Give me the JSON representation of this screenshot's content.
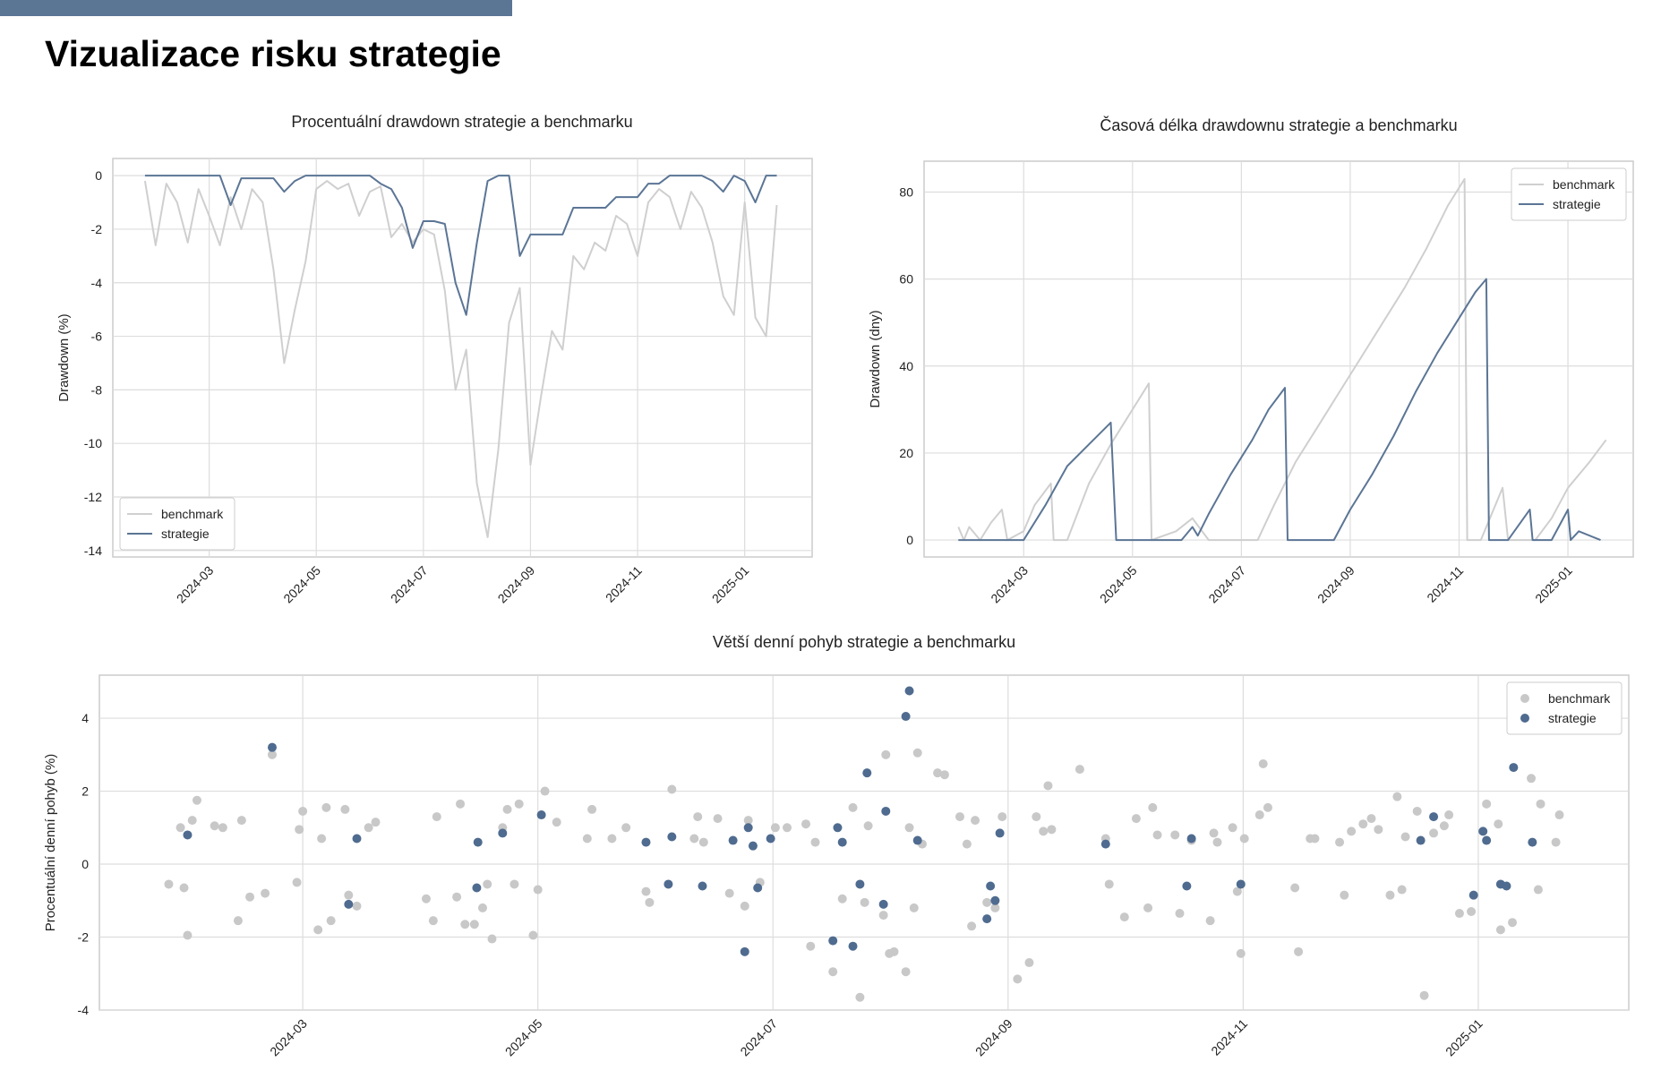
{
  "header": {
    "title": "Vizualizace risku strategie"
  },
  "chart_data": [
    {
      "type": "line",
      "title": "Procentuální drawdown strategie a benchmarku",
      "y_label": "Drawdown (%)",
      "legend": "lower left",
      "grid": true,
      "xlim": [
        1.2,
        14.26
      ],
      "xticks": [
        {
          "value": 3,
          "label": "2024-03"
        },
        {
          "value": 5,
          "label": "2024-05"
        },
        {
          "value": 7,
          "label": "2024-07"
        },
        {
          "value": 9,
          "label": "2024-09"
        },
        {
          "value": 11,
          "label": "2024-11"
        },
        {
          "value": 13,
          "label": "2025-01"
        }
      ],
      "ylim": [
        -14.24,
        0.64
      ],
      "yticks": [
        -14,
        -12,
        -10,
        -8,
        -6,
        -4,
        -2,
        0
      ],
      "x": [
        1.8,
        2.0,
        2.2,
        2.4,
        2.6,
        2.8,
        3.0,
        3.2,
        3.4,
        3.6,
        3.8,
        4.0,
        4.2,
        4.4,
        4.6,
        4.8,
        5.0,
        5.2,
        5.4,
        5.6,
        5.8,
        6.0,
        6.2,
        6.4,
        6.6,
        6.8,
        7.0,
        7.2,
        7.4,
        7.6,
        7.8,
        8.0,
        8.2,
        8.4,
        8.6,
        8.8,
        9.0,
        9.2,
        9.4,
        9.6,
        9.8,
        10.0,
        10.2,
        10.4,
        10.6,
        10.8,
        11.0,
        11.2,
        11.4,
        11.6,
        11.8,
        12.0,
        12.2,
        12.4,
        12.6,
        12.8,
        13.0,
        13.2,
        13.4,
        13.6
      ],
      "series": [
        {
          "name": "benchmark",
          "color": "#cfcfcf",
          "values": [
            -0.2,
            -2.6,
            -0.3,
            -1.0,
            -2.5,
            -0.5,
            -1.5,
            -2.6,
            -0.8,
            -2.0,
            -0.5,
            -1.0,
            -3.5,
            -7.0,
            -5.0,
            -3.2,
            -0.5,
            -0.2,
            -0.5,
            -0.3,
            -1.5,
            -0.6,
            -0.4,
            -2.3,
            -1.8,
            -2.5,
            -2.0,
            -2.2,
            -4.3,
            -8.0,
            -6.5,
            -11.5,
            -13.5,
            -10.2,
            -5.5,
            -4.2,
            -10.8,
            -8.2,
            -5.8,
            -6.5,
            -3.0,
            -3.5,
            -2.5,
            -2.8,
            -1.5,
            -1.8,
            -3.0,
            -1.0,
            -0.5,
            -0.8,
            -2.0,
            -0.6,
            -1.2,
            -2.5,
            -4.5,
            -5.2,
            -1.0,
            -5.3,
            -6.0,
            -1.1
          ]
        },
        {
          "name": "strategie",
          "color": "#5b7595",
          "values": [
            0,
            0,
            0,
            0,
            0,
            0,
            0,
            0,
            -1.1,
            -0.1,
            -0.1,
            -0.1,
            -0.1,
            -0.6,
            -0.2,
            0,
            0,
            0,
            0,
            0,
            0,
            0,
            -0.3,
            -0.5,
            -1.2,
            -2.7,
            -1.7,
            -1.7,
            -1.8,
            -4.0,
            -5.2,
            -2.5,
            -0.2,
            0,
            0,
            -3.0,
            -2.2,
            -2.2,
            -2.2,
            -2.2,
            -1.2,
            -1.2,
            -1.2,
            -1.2,
            -0.8,
            -0.8,
            -0.8,
            -0.3,
            -0.3,
            0,
            0,
            0,
            0,
            -0.2,
            -0.6,
            0,
            -0.2,
            -1.0,
            0,
            0
          ]
        }
      ]
    },
    {
      "type": "line",
      "title": "Časová délka drawdownu strategie a benchmarku",
      "y_label": "Drawdown (dny)",
      "legend": "upper right",
      "grid": true,
      "xlim": [
        1.17,
        14.2
      ],
      "xticks": [
        {
          "value": 3,
          "label": "2024-03"
        },
        {
          "value": 5,
          "label": "2024-05"
        },
        {
          "value": 7,
          "label": "2024-07"
        },
        {
          "value": 9,
          "label": "2024-09"
        },
        {
          "value": 11,
          "label": "2024-11"
        },
        {
          "value": 13,
          "label": "2025-01"
        }
      ],
      "ylim": [
        -3.9,
        87.1
      ],
      "yticks": [
        0,
        20,
        40,
        60,
        80
      ],
      "series": [
        {
          "name": "benchmark",
          "color": "#cfcfcf",
          "x": [
            1.8,
            1.9,
            2.0,
            2.2,
            2.4,
            2.6,
            2.7,
            3.0,
            3.2,
            3.5,
            3.55,
            3.8,
            4.2,
            4.6,
            5.0,
            5.3,
            5.35,
            5.8,
            6.1,
            6.4,
            7.3,
            7.6,
            8.0,
            8.4,
            8.8,
            9.2,
            9.6,
            10.0,
            10.4,
            10.8,
            11.1,
            11.15,
            11.4,
            11.8,
            11.9,
            12.4,
            12.7,
            13.0,
            13.4,
            13.7
          ],
          "values": [
            3,
            0,
            3,
            0,
            4,
            7,
            0,
            2,
            8,
            13,
            0,
            0,
            13,
            22,
            30,
            36,
            0,
            2,
            5,
            0,
            0,
            8,
            18,
            26,
            34,
            42,
            50,
            58,
            67,
            77,
            83,
            0,
            0,
            12,
            0,
            0,
            5,
            12,
            18,
            23
          ]
        },
        {
          "name": "strategie",
          "color": "#5b7595",
          "x": [
            1.8,
            2.4,
            3.0,
            3.4,
            3.8,
            4.2,
            4.6,
            4.7,
            5.3,
            5.9,
            6.1,
            6.2,
            6.4,
            6.8,
            7.2,
            7.5,
            7.8,
            7.85,
            8.3,
            8.7,
            9.0,
            9.4,
            9.8,
            10.2,
            10.6,
            11.0,
            11.3,
            11.5,
            11.55,
            11.9,
            12.3,
            12.35,
            12.7,
            13.0,
            13.05,
            13.2,
            13.6
          ],
          "values": [
            0,
            0,
            0,
            8,
            17,
            22,
            27,
            0,
            0,
            0,
            3,
            1,
            6,
            15,
            23,
            30,
            35,
            0,
            0,
            0,
            7,
            15,
            24,
            34,
            43,
            51,
            57,
            60,
            0,
            0,
            7,
            0,
            0,
            7,
            0,
            2,
            0
          ]
        }
      ]
    },
    {
      "type": "scatter",
      "title": "Větší denní pohyb strategie a benchmarku",
      "y_label": "Procentuální denní pohyb (%)",
      "legend": "upper right",
      "grid": true,
      "xlim": [
        1.27,
        14.28
      ],
      "xticks": [
        {
          "value": 3,
          "label": "2024-03"
        },
        {
          "value": 5,
          "label": "2024-05"
        },
        {
          "value": 7,
          "label": "2024-07"
        },
        {
          "value": 9,
          "label": "2024-09"
        },
        {
          "value": 11,
          "label": "2024-11"
        },
        {
          "value": 13,
          "label": "2025-01"
        }
      ],
      "ylim": [
        -4.0,
        5.18
      ],
      "yticks": [
        -4,
        -2,
        0,
        2,
        4
      ],
      "series": [
        {
          "name": "benchmark",
          "color": "#c8c8c8",
          "x": [
            1.86,
            1.96,
            1.99,
            2.02,
            2.06,
            2.1,
            2.25,
            2.32,
            2.45,
            2.48,
            2.55,
            2.68,
            2.74,
            2.95,
            2.97,
            3.0,
            3.13,
            3.16,
            3.2,
            3.24,
            3.36,
            3.39,
            3.46,
            3.56,
            3.62,
            4.05,
            4.11,
            4.14,
            4.31,
            4.34,
            4.38,
            4.46,
            4.53,
            4.57,
            4.61,
            4.7,
            4.74,
            4.8,
            4.84,
            4.96,
            5.0,
            5.06,
            5.16,
            5.42,
            5.46,
            5.63,
            5.75,
            5.92,
            5.95,
            6.14,
            6.33,
            6.36,
            6.41,
            6.53,
            6.63,
            6.76,
            6.79,
            6.89,
            7.02,
            7.12,
            7.28,
            7.32,
            7.36,
            7.51,
            7.59,
            7.68,
            7.74,
            7.78,
            7.81,
            7.94,
            7.96,
            7.99,
            8.03,
            8.13,
            8.16,
            8.2,
            8.23,
            8.27,
            8.4,
            8.46,
            8.59,
            8.65,
            8.69,
            8.72,
            8.82,
            8.89,
            8.95,
            9.08,
            9.18,
            9.24,
            9.3,
            9.34,
            9.37,
            9.61,
            9.83,
            9.86,
            9.99,
            10.09,
            10.19,
            10.23,
            10.27,
            10.42,
            10.46,
            10.56,
            10.72,
            10.75,
            10.78,
            10.91,
            10.95,
            10.98,
            11.01,
            11.14,
            11.17,
            11.21,
            11.44,
            11.47,
            11.57,
            11.61,
            11.82,
            11.86,
            11.92,
            12.02,
            12.09,
            12.15,
            12.25,
            12.31,
            12.35,
            12.38,
            12.48,
            12.54,
            12.62,
            12.71,
            12.75,
            12.84,
            12.94,
            13.07,
            13.17,
            13.19,
            13.29,
            13.45,
            13.51,
            13.53,
            13.66,
            13.69
          ],
          "values": [
            -0.55,
            1.0,
            -0.65,
            -1.95,
            1.2,
            1.75,
            1.05,
            1.0,
            -1.55,
            1.2,
            -0.9,
            -0.8,
            3.0,
            -0.5,
            0.95,
            1.45,
            -1.8,
            0.7,
            1.55,
            -1.55,
            1.5,
            -0.85,
            -1.15,
            1.0,
            1.15,
            -0.95,
            -1.55,
            1.3,
            -0.9,
            1.65,
            -1.65,
            -1.65,
            -1.2,
            -0.55,
            -2.05,
            1.0,
            1.5,
            -0.55,
            1.65,
            -1.95,
            -0.7,
            2.0,
            1.15,
            0.7,
            1.5,
            0.7,
            1.0,
            -0.75,
            -1.05,
            2.05,
            0.7,
            1.3,
            0.6,
            1.25,
            -0.8,
            -1.15,
            1.2,
            -0.5,
            1.0,
            1.0,
            1.1,
            -2.25,
            0.6,
            -2.95,
            -0.95,
            1.55,
            -3.65,
            -1.05,
            1.05,
            -1.4,
            3.0,
            -2.45,
            -2.4,
            -2.95,
            1.0,
            -1.2,
            3.05,
            0.55,
            2.5,
            2.45,
            1.3,
            0.55,
            -1.7,
            1.2,
            -1.05,
            -1.2,
            1.3,
            -3.15,
            -2.7,
            1.3,
            0.9,
            2.15,
            0.95,
            2.6,
            0.7,
            -0.55,
            -1.45,
            1.25,
            -1.2,
            1.55,
            0.8,
            0.8,
            -1.35,
            0.65,
            -1.55,
            0.85,
            0.6,
            1.0,
            -0.75,
            -2.45,
            0.7,
            1.35,
            2.75,
            1.55,
            -0.65,
            -2.4,
            0.7,
            0.7,
            0.6,
            -0.85,
            0.9,
            1.1,
            1.25,
            0.95,
            -0.85,
            1.85,
            -0.7,
            0.75,
            1.45,
            -3.6,
            0.85,
            1.05,
            1.35,
            -1.35,
            -1.3,
            1.65,
            1.1,
            -1.8,
            -1.6,
            2.35,
            -0.7,
            1.65,
            0.6,
            1.35
          ]
        },
        {
          "name": "strategie",
          "color": "#4f6b8f",
          "x": [
            2.02,
            2.74,
            3.39,
            3.46,
            4.48,
            4.49,
            4.7,
            5.03,
            5.92,
            6.14,
            6.11,
            6.4,
            6.66,
            6.76,
            6.79,
            6.83,
            6.87,
            6.98,
            7.51,
            7.55,
            7.59,
            7.68,
            7.74,
            7.8,
            7.94,
            7.96,
            8.13,
            8.16,
            8.23,
            8.82,
            8.85,
            8.89,
            8.93,
            9.83,
            10.52,
            10.56,
            10.98,
            12.51,
            12.62,
            12.96,
            13.04,
            13.07,
            13.19,
            13.24,
            13.3,
            13.46
          ],
          "values": [
            0.8,
            3.2,
            -1.1,
            0.7,
            -0.65,
            0.6,
            0.85,
            1.35,
            0.6,
            0.75,
            -0.55,
            -0.6,
            0.65,
            -2.4,
            1.0,
            0.5,
            -0.65,
            0.7,
            -2.1,
            1.0,
            0.6,
            -2.25,
            -0.55,
            2.5,
            -1.1,
            1.45,
            4.05,
            4.75,
            0.65,
            -1.5,
            -0.6,
            -1.0,
            0.85,
            0.55,
            -0.6,
            0.7,
            -0.55,
            0.65,
            1.3,
            -0.85,
            0.9,
            0.65,
            -0.55,
            -0.6,
            2.65,
            0.6
          ]
        }
      ]
    }
  ]
}
